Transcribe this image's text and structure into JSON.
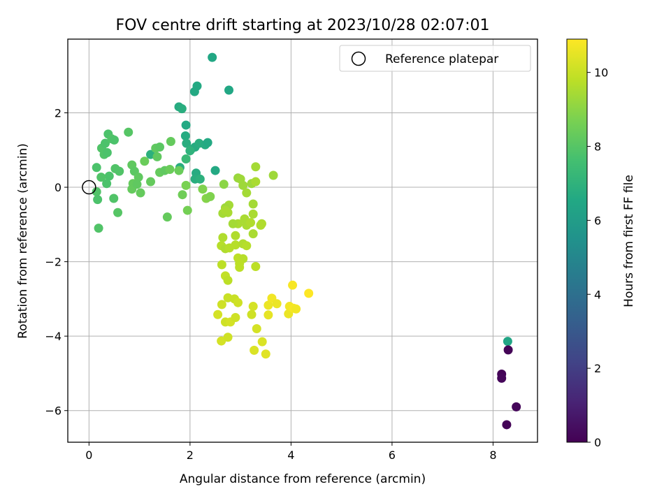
{
  "chart_data": {
    "type": "scatter",
    "title": "FOV centre drift starting at 2023/10/28 02:07:01",
    "xlabel": "Angular distance from reference (arcmin)",
    "ylabel": "Rotation from reference (arcmin)",
    "xlim": [
      -0.42,
      8.88
    ],
    "ylim": [
      -6.85,
      3.98
    ],
    "xticks": [
      0,
      2,
      4,
      6,
      8
    ],
    "yticks": [
      -6,
      -4,
      -2,
      0,
      2
    ],
    "grid": true,
    "legend": {
      "placement": "top-right",
      "entries": [
        {
          "label": "Reference platepar",
          "marker": "open-circle"
        }
      ]
    },
    "reference_point": {
      "x": 0,
      "y": 0
    },
    "colorbar": {
      "label": "Hours from first FF file",
      "colormap": "viridis",
      "range": [
        0,
        10.9
      ],
      "ticks": [
        0,
        2,
        4,
        6,
        8,
        10
      ]
    },
    "points": [
      {
        "x": 2.44,
        "y": 3.49,
        "c": 6.5
      },
      {
        "x": 2.14,
        "y": 2.72,
        "c": 6.6
      },
      {
        "x": 2.09,
        "y": 2.57,
        "c": 6.6
      },
      {
        "x": 2.77,
        "y": 2.61,
        "c": 6.5
      },
      {
        "x": 1.78,
        "y": 2.16,
        "c": 6.7
      },
      {
        "x": 1.84,
        "y": 2.11,
        "c": 6.8
      },
      {
        "x": 1.92,
        "y": 1.67,
        "c": 6.6
      },
      {
        "x": 1.91,
        "y": 1.38,
        "c": 6.7
      },
      {
        "x": 1.93,
        "y": 1.18,
        "c": 6.8
      },
      {
        "x": 2.02,
        "y": 1.02,
        "c": 6.9
      },
      {
        "x": 2.1,
        "y": 1.08,
        "c": 6.7
      },
      {
        "x": 2.18,
        "y": 1.18,
        "c": 6.8
      },
      {
        "x": 2.3,
        "y": 1.14,
        "c": 6.7
      },
      {
        "x": 2.35,
        "y": 1.2,
        "c": 6.6
      },
      {
        "x": 2.0,
        "y": 0.98,
        "c": 7.0
      },
      {
        "x": 1.22,
        "y": 0.88,
        "c": 6.9
      },
      {
        "x": 1.8,
        "y": 0.53,
        "c": 6.8
      },
      {
        "x": 2.12,
        "y": 0.38,
        "c": 6.7
      },
      {
        "x": 2.1,
        "y": 0.22,
        "c": 6.8
      },
      {
        "x": 2.2,
        "y": 0.22,
        "c": 6.9
      },
      {
        "x": 2.5,
        "y": 0.45,
        "c": 6.6
      },
      {
        "x": 1.92,
        "y": 0.76,
        "c": 7.3
      },
      {
        "x": 0.15,
        "y": 0.53,
        "c": 7.8
      },
      {
        "x": 0.25,
        "y": 1.05,
        "c": 7.9
      },
      {
        "x": 0.32,
        "y": 1.18,
        "c": 7.8
      },
      {
        "x": 0.38,
        "y": 1.43,
        "c": 7.8
      },
      {
        "x": 0.45,
        "y": 1.3,
        "c": 7.9
      },
      {
        "x": 0.5,
        "y": 1.27,
        "c": 7.8
      },
      {
        "x": 0.3,
        "y": 0.88,
        "c": 7.9
      },
      {
        "x": 0.36,
        "y": 0.93,
        "c": 7.8
      },
      {
        "x": 0.78,
        "y": 1.48,
        "c": 8.0
      },
      {
        "x": 0.52,
        "y": 0.5,
        "c": 7.9
      },
      {
        "x": 0.4,
        "y": 0.3,
        "c": 7.8
      },
      {
        "x": 0.6,
        "y": 0.43,
        "c": 7.9
      },
      {
        "x": 0.24,
        "y": 0.27,
        "c": 7.9
      },
      {
        "x": 0.35,
        "y": 0.1,
        "c": 7.8
      },
      {
        "x": 0.15,
        "y": -0.12,
        "c": 7.9
      },
      {
        "x": 0.17,
        "y": -0.33,
        "c": 7.8
      },
      {
        "x": 0.49,
        "y": -0.3,
        "c": 7.9
      },
      {
        "x": 0.57,
        "y": -0.68,
        "c": 8.0
      },
      {
        "x": 0.19,
        "y": -1.1,
        "c": 7.9
      },
      {
        "x": 0.85,
        "y": 0.6,
        "c": 8.2
      },
      {
        "x": 0.9,
        "y": 0.43,
        "c": 8.1
      },
      {
        "x": 0.98,
        "y": 0.27,
        "c": 8.2
      },
      {
        "x": 0.87,
        "y": 0.1,
        "c": 8.3
      },
      {
        "x": 0.85,
        "y": -0.05,
        "c": 8.3
      },
      {
        "x": 0.95,
        "y": 0.08,
        "c": 8.2
      },
      {
        "x": 1.02,
        "y": -0.15,
        "c": 8.3
      },
      {
        "x": 1.1,
        "y": 0.7,
        "c": 8.4
      },
      {
        "x": 1.22,
        "y": 0.15,
        "c": 8.3
      },
      {
        "x": 1.32,
        "y": 1.05,
        "c": 8.2
      },
      {
        "x": 1.4,
        "y": 1.08,
        "c": 8.1
      },
      {
        "x": 1.4,
        "y": 0.4,
        "c": 8.3
      },
      {
        "x": 1.5,
        "y": 0.45,
        "c": 8.2
      },
      {
        "x": 1.6,
        "y": 0.48,
        "c": 8.4
      },
      {
        "x": 1.62,
        "y": 1.23,
        "c": 8.3
      },
      {
        "x": 1.78,
        "y": 0.45,
        "c": 8.4
      },
      {
        "x": 1.55,
        "y": -0.8,
        "c": 8.3
      },
      {
        "x": 1.85,
        "y": -0.2,
        "c": 8.5
      },
      {
        "x": 1.92,
        "y": 0.05,
        "c": 8.7
      },
      {
        "x": 1.95,
        "y": -0.62,
        "c": 8.6
      },
      {
        "x": 2.25,
        "y": -0.05,
        "c": 8.8
      },
      {
        "x": 2.32,
        "y": -0.3,
        "c": 8.9
      },
      {
        "x": 2.4,
        "y": -0.25,
        "c": 8.8
      },
      {
        "x": 1.35,
        "y": 0.82,
        "c": 8.2
      },
      {
        "x": 2.67,
        "y": 0.08,
        "c": 9.0
      },
      {
        "x": 2.95,
        "y": 0.25,
        "c": 9.2
      },
      {
        "x": 3.0,
        "y": 0.22,
        "c": 9.3
      },
      {
        "x": 3.05,
        "y": 0.05,
        "c": 9.3
      },
      {
        "x": 3.12,
        "y": -0.15,
        "c": 9.4
      },
      {
        "x": 3.22,
        "y": 0.1,
        "c": 9.3
      },
      {
        "x": 3.3,
        "y": 0.15,
        "c": 9.5
      },
      {
        "x": 3.3,
        "y": 0.55,
        "c": 9.4
      },
      {
        "x": 3.65,
        "y": 0.32,
        "c": 9.3
      },
      {
        "x": 3.25,
        "y": -0.45,
        "c": 9.4
      },
      {
        "x": 2.77,
        "y": -0.48,
        "c": 9.4
      },
      {
        "x": 2.7,
        "y": -0.55,
        "c": 9.3
      },
      {
        "x": 2.75,
        "y": -0.68,
        "c": 9.5
      },
      {
        "x": 2.65,
        "y": -0.7,
        "c": 9.4
      },
      {
        "x": 2.7,
        "y": -0.62,
        "c": 9.5
      },
      {
        "x": 2.95,
        "y": -0.98,
        "c": 9.5
      },
      {
        "x": 2.85,
        "y": -0.98,
        "c": 9.4
      },
      {
        "x": 3.08,
        "y": -0.85,
        "c": 9.5
      },
      {
        "x": 3.12,
        "y": -1.02,
        "c": 9.5
      },
      {
        "x": 3.2,
        "y": -0.95,
        "c": 9.6
      },
      {
        "x": 3.25,
        "y": -0.72,
        "c": 9.5
      },
      {
        "x": 3.4,
        "y": -1.02,
        "c": 9.6
      },
      {
        "x": 3.42,
        "y": -0.98,
        "c": 9.6
      },
      {
        "x": 3.25,
        "y": -1.25,
        "c": 9.5
      },
      {
        "x": 2.65,
        "y": -1.35,
        "c": 9.6
      },
      {
        "x": 2.9,
        "y": -1.3,
        "c": 9.6
      },
      {
        "x": 2.62,
        "y": -1.57,
        "c": 9.7
      },
      {
        "x": 2.7,
        "y": -1.65,
        "c": 9.6
      },
      {
        "x": 2.78,
        "y": -1.63,
        "c": 9.7
      },
      {
        "x": 2.9,
        "y": -1.55,
        "c": 9.7
      },
      {
        "x": 3.05,
        "y": -1.52,
        "c": 9.6
      },
      {
        "x": 3.12,
        "y": -1.57,
        "c": 9.7
      },
      {
        "x": 2.95,
        "y": -1.9,
        "c": 9.8
      },
      {
        "x": 3.05,
        "y": -1.92,
        "c": 9.7
      },
      {
        "x": 2.98,
        "y": -2.05,
        "c": 9.8
      },
      {
        "x": 2.98,
        "y": -2.15,
        "c": 9.8
      },
      {
        "x": 3.3,
        "y": -2.13,
        "c": 9.8
      },
      {
        "x": 2.63,
        "y": -2.08,
        "c": 9.8
      },
      {
        "x": 2.7,
        "y": -2.38,
        "c": 9.9
      },
      {
        "x": 2.75,
        "y": -2.5,
        "c": 9.8
      },
      {
        "x": 2.75,
        "y": -2.97,
        "c": 10.0
      },
      {
        "x": 2.63,
        "y": -3.15,
        "c": 10.1
      },
      {
        "x": 2.88,
        "y": -3.0,
        "c": 10.0
      },
      {
        "x": 2.95,
        "y": -3.1,
        "c": 10.1
      },
      {
        "x": 3.25,
        "y": -3.2,
        "c": 10.2
      },
      {
        "x": 3.22,
        "y": -3.42,
        "c": 10.1
      },
      {
        "x": 2.55,
        "y": -3.42,
        "c": 10.2
      },
      {
        "x": 2.7,
        "y": -3.62,
        "c": 10.1
      },
      {
        "x": 2.8,
        "y": -3.62,
        "c": 10.2
      },
      {
        "x": 2.9,
        "y": -3.5,
        "c": 10.1
      },
      {
        "x": 3.32,
        "y": -3.8,
        "c": 10.2
      },
      {
        "x": 2.62,
        "y": -4.13,
        "c": 10.2
      },
      {
        "x": 2.75,
        "y": -4.03,
        "c": 10.1
      },
      {
        "x": 3.43,
        "y": -4.15,
        "c": 10.3
      },
      {
        "x": 3.27,
        "y": -4.38,
        "c": 10.3
      },
      {
        "x": 3.5,
        "y": -4.48,
        "c": 10.4
      },
      {
        "x": 3.55,
        "y": -3.17,
        "c": 10.6
      },
      {
        "x": 3.62,
        "y": -2.98,
        "c": 10.7
      },
      {
        "x": 3.72,
        "y": -3.13,
        "c": 10.6
      },
      {
        "x": 3.55,
        "y": -3.43,
        "c": 10.5
      },
      {
        "x": 3.95,
        "y": -3.4,
        "c": 10.6
      },
      {
        "x": 3.97,
        "y": -3.2,
        "c": 10.7
      },
      {
        "x": 4.05,
        "y": -3.25,
        "c": 10.8
      },
      {
        "x": 4.1,
        "y": -3.27,
        "c": 10.7
      },
      {
        "x": 4.03,
        "y": -2.63,
        "c": 10.8
      },
      {
        "x": 4.35,
        "y": -2.85,
        "c": 10.9
      },
      {
        "x": 8.29,
        "y": -4.14,
        "c": 6.4
      },
      {
        "x": 8.3,
        "y": -4.37,
        "c": 0.1
      },
      {
        "x": 8.17,
        "y": -5.02,
        "c": 0.1
      },
      {
        "x": 8.17,
        "y": -5.13,
        "c": 0.2
      },
      {
        "x": 8.46,
        "y": -5.9,
        "c": 0.2
      },
      {
        "x": 8.27,
        "y": -6.38,
        "c": 0.1
      }
    ]
  }
}
